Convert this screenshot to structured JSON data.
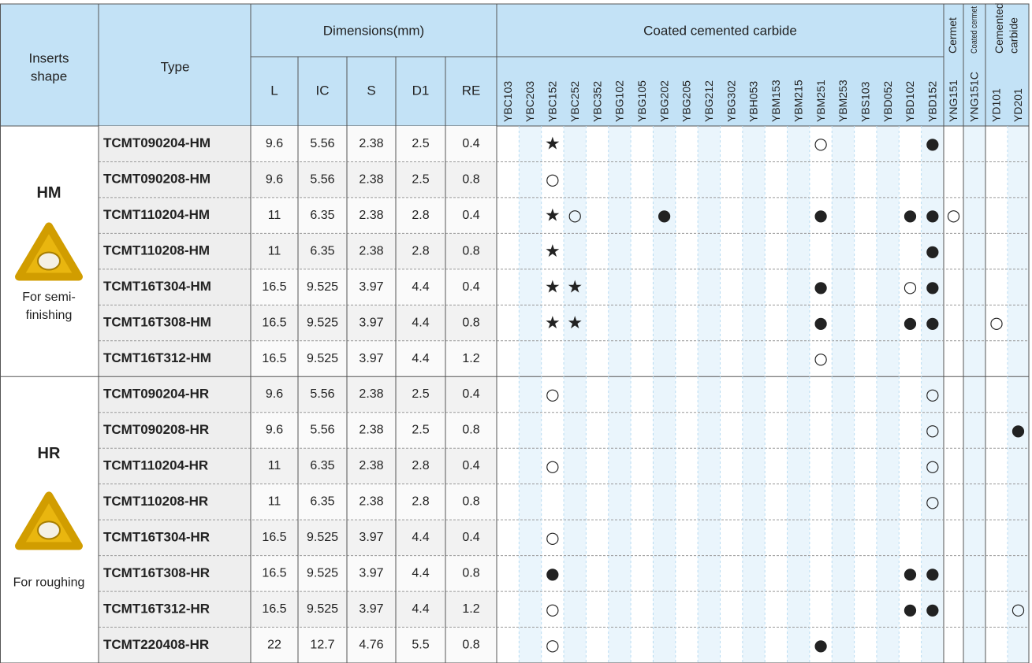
{
  "header": {
    "shape": [
      "Inserts",
      "shape"
    ],
    "type": "Type",
    "dimensions": "Dimensions(mm)",
    "dims": [
      "L",
      "IC",
      "S",
      "D1",
      "RE"
    ],
    "groups": [
      {
        "label": [
          "Coated cemented carbide"
        ],
        "grades": [
          "YBC103",
          "YBC203",
          "YBC152",
          "YBC252",
          "YBC352",
          "YBG102",
          "YBG105",
          "YBG202",
          "YBG205",
          "YBG212",
          "YBG302",
          "YBH053",
          "YBM153",
          "YBM215",
          "YBM251",
          "YBM253",
          "YBS103",
          "YBD052",
          "YBD102",
          "YBD152"
        ]
      },
      {
        "label": [
          "Cermet"
        ],
        "grades": [
          "YNG151"
        ]
      },
      {
        "label": [
          "Coated cermet"
        ],
        "grades": [
          "YNG151C"
        ]
      },
      {
        "label": [
          "Cemented",
          "carbide"
        ],
        "grades": [
          "YD101",
          "YD201"
        ]
      }
    ]
  },
  "blocks": [
    {
      "code": "HM",
      "note": [
        "For semi-",
        "finishing"
      ],
      "rows": [
        {
          "type": "TCMT090204-HM",
          "dims": [
            "9.6",
            "5.56",
            "2.38",
            "2.5",
            "0.4"
          ],
          "marks": [
            null,
            null,
            "★",
            null,
            null,
            null,
            null,
            null,
            null,
            null,
            null,
            null,
            null,
            null,
            "○",
            null,
            null,
            null,
            null,
            "●",
            null,
            null,
            null,
            null
          ]
        },
        {
          "type": "TCMT090208-HM",
          "dims": [
            "9.6",
            "5.56",
            "2.38",
            "2.5",
            "0.8"
          ],
          "marks": [
            null,
            null,
            "○",
            null,
            null,
            null,
            null,
            null,
            null,
            null,
            null,
            null,
            null,
            null,
            null,
            null,
            null,
            null,
            null,
            null,
            null,
            null,
            null,
            null
          ]
        },
        {
          "type": "TCMT110204-HM",
          "dims": [
            "11",
            "6.35",
            "2.38",
            "2.8",
            "0.4"
          ],
          "marks": [
            null,
            null,
            "★",
            "○",
            null,
            null,
            null,
            "●",
            null,
            null,
            null,
            null,
            null,
            null,
            "●",
            null,
            null,
            null,
            "●",
            "●",
            "○",
            null,
            null,
            null
          ]
        },
        {
          "type": "TCMT110208-HM",
          "dims": [
            "11",
            "6.35",
            "2.38",
            "2.8",
            "0.8"
          ],
          "marks": [
            null,
            null,
            "★",
            null,
            null,
            null,
            null,
            null,
            null,
            null,
            null,
            null,
            null,
            null,
            null,
            null,
            null,
            null,
            null,
            "●",
            null,
            null,
            null,
            null
          ]
        },
        {
          "type": "TCMT16T304-HM",
          "dims": [
            "16.5",
            "9.525",
            "3.97",
            "4.4",
            "0.4"
          ],
          "marks": [
            null,
            null,
            "★",
            "★",
            null,
            null,
            null,
            null,
            null,
            null,
            null,
            null,
            null,
            null,
            "●",
            null,
            null,
            null,
            "○",
            "●",
            null,
            null,
            null,
            null
          ]
        },
        {
          "type": "TCMT16T308-HM",
          "dims": [
            "16.5",
            "9.525",
            "3.97",
            "4.4",
            "0.8"
          ],
          "marks": [
            null,
            null,
            "★",
            "★",
            null,
            null,
            null,
            null,
            null,
            null,
            null,
            null,
            null,
            null,
            "●",
            null,
            null,
            null,
            "●",
            "●",
            null,
            null,
            "○",
            null
          ]
        },
        {
          "type": "TCMT16T312-HM",
          "dims": [
            "16.5",
            "9.525",
            "3.97",
            "4.4",
            "1.2"
          ],
          "marks": [
            null,
            null,
            null,
            null,
            null,
            null,
            null,
            null,
            null,
            null,
            null,
            null,
            null,
            null,
            "○",
            null,
            null,
            null,
            null,
            null,
            null,
            null,
            null,
            null
          ]
        }
      ]
    },
    {
      "code": "HR",
      "note": [
        "For roughing"
      ],
      "rows": [
        {
          "type": "TCMT090204-HR",
          "dims": [
            "9.6",
            "5.56",
            "2.38",
            "2.5",
            "0.4"
          ],
          "marks": [
            null,
            null,
            "○",
            null,
            null,
            null,
            null,
            null,
            null,
            null,
            null,
            null,
            null,
            null,
            null,
            null,
            null,
            null,
            null,
            "○",
            null,
            null,
            null,
            null
          ]
        },
        {
          "type": "TCMT090208-HR",
          "dims": [
            "9.6",
            "5.56",
            "2.38",
            "2.5",
            "0.8"
          ],
          "marks": [
            null,
            null,
            null,
            null,
            null,
            null,
            null,
            null,
            null,
            null,
            null,
            null,
            null,
            null,
            null,
            null,
            null,
            null,
            null,
            "○",
            null,
            null,
            null,
            "●"
          ]
        },
        {
          "type": "TCMT110204-HR",
          "dims": [
            "11",
            "6.35",
            "2.38",
            "2.8",
            "0.4"
          ],
          "marks": [
            null,
            null,
            "○",
            null,
            null,
            null,
            null,
            null,
            null,
            null,
            null,
            null,
            null,
            null,
            null,
            null,
            null,
            null,
            null,
            "○",
            null,
            null,
            null,
            null
          ]
        },
        {
          "type": "TCMT110208-HR",
          "dims": [
            "11",
            "6.35",
            "2.38",
            "2.8",
            "0.8"
          ],
          "marks": [
            null,
            null,
            null,
            null,
            null,
            null,
            null,
            null,
            null,
            null,
            null,
            null,
            null,
            null,
            null,
            null,
            null,
            null,
            null,
            "○",
            null,
            null,
            null,
            null
          ]
        },
        {
          "type": "TCMT16T304-HR",
          "dims": [
            "16.5",
            "9.525",
            "3.97",
            "4.4",
            "0.4"
          ],
          "marks": [
            null,
            null,
            "○",
            null,
            null,
            null,
            null,
            null,
            null,
            null,
            null,
            null,
            null,
            null,
            null,
            null,
            null,
            null,
            null,
            null,
            null,
            null,
            null,
            null
          ]
        },
        {
          "type": "TCMT16T308-HR",
          "dims": [
            "16.5",
            "9.525",
            "3.97",
            "4.4",
            "0.8"
          ],
          "marks": [
            null,
            null,
            "●",
            null,
            null,
            null,
            null,
            null,
            null,
            null,
            null,
            null,
            null,
            null,
            null,
            null,
            null,
            null,
            "●",
            "●",
            null,
            null,
            null,
            null
          ]
        },
        {
          "type": "TCMT16T312-HR",
          "dims": [
            "16.5",
            "9.525",
            "3.97",
            "4.4",
            "1.2"
          ],
          "marks": [
            null,
            null,
            "○",
            null,
            null,
            null,
            null,
            null,
            null,
            null,
            null,
            null,
            null,
            null,
            null,
            null,
            null,
            null,
            "●",
            "●",
            null,
            null,
            null,
            "○"
          ]
        },
        {
          "type": "TCMT220408-HR",
          "dims": [
            "22",
            "12.7",
            "4.76",
            "5.5",
            "0.8"
          ],
          "marks": [
            null,
            null,
            "○",
            null,
            null,
            null,
            null,
            null,
            null,
            null,
            null,
            null,
            null,
            null,
            "●",
            null,
            null,
            null,
            null,
            null,
            null,
            null,
            null,
            null
          ]
        }
      ]
    }
  ]
}
